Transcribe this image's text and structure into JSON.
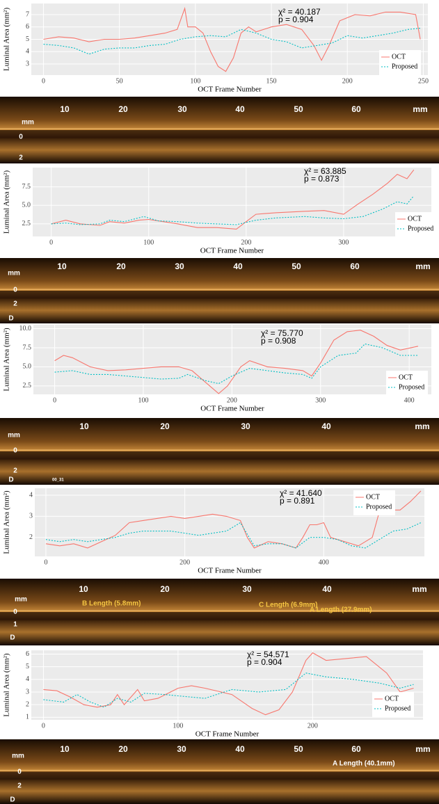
{
  "chart_data": [
    {
      "type": "line",
      "xlabel": "OCT Frame Number",
      "ylabel": "Luminal Area (mm²)",
      "annotations": [
        "χ² = 40.187",
        "p = 0.904"
      ],
      "xlim": [
        -8,
        253
      ],
      "xticks": [
        0,
        50,
        100,
        150,
        200,
        250
      ],
      "ylim": [
        2.1,
        7.9
      ],
      "yticks": [
        3,
        4,
        5,
        6,
        7
      ],
      "grid": true,
      "legend": "bottom-right",
      "series": [
        {
          "name": "OCT",
          "color": "#f8766d",
          "x": [
            0,
            10,
            20,
            30,
            40,
            50,
            60,
            70,
            80,
            88,
            93,
            95,
            100,
            105,
            110,
            115,
            120,
            125,
            130,
            135,
            140,
            150,
            160,
            170,
            178,
            183,
            188,
            195,
            205,
            215,
            225,
            235,
            245,
            248
          ],
          "values": [
            5.0,
            5.2,
            5.1,
            4.8,
            5.0,
            5.0,
            5.1,
            5.3,
            5.5,
            5.8,
            7.5,
            6.0,
            6.0,
            5.5,
            4.0,
            2.8,
            2.4,
            3.5,
            5.5,
            6.0,
            5.6,
            6.0,
            6.2,
            5.8,
            4.5,
            3.3,
            4.5,
            6.5,
            7.0,
            6.9,
            7.2,
            7.2,
            7.0,
            5.0
          ]
        },
        {
          "name": "Proposed",
          "color": "#00bfc4",
          "x": [
            0,
            10,
            20,
            30,
            40,
            50,
            60,
            70,
            80,
            90,
            100,
            110,
            120,
            130,
            140,
            150,
            160,
            170,
            180,
            190,
            200,
            210,
            220,
            230,
            240,
            248
          ],
          "values": [
            4.6,
            4.5,
            4.3,
            3.8,
            4.2,
            4.3,
            4.3,
            4.5,
            4.6,
            5.0,
            5.2,
            5.3,
            5.2,
            5.8,
            5.5,
            5.0,
            4.8,
            4.3,
            4.5,
            4.7,
            5.3,
            5.1,
            5.3,
            5.5,
            5.8,
            5.9
          ]
        }
      ]
    },
    {
      "type": "line",
      "xlabel": "OCT Frame Number",
      "ylabel": "Luminal Area (mm²)",
      "annotations": [
        "χ² = 63.885",
        "p = 0.873"
      ],
      "xlim": [
        -19,
        390
      ],
      "xticks": [
        0,
        100,
        200,
        300
      ],
      "ylim": [
        0.8,
        10.1
      ],
      "yticks": [
        2.5,
        {
          "value": 5,
          "label": "5.0"
        },
        7.5
      ],
      "grid": true,
      "legend": "bottom-right",
      "series": [
        {
          "name": "OCT",
          "color": "#f8766d",
          "x": [
            0,
            15,
            30,
            50,
            60,
            75,
            90,
            100,
            115,
            130,
            150,
            170,
            190,
            200,
            210,
            230,
            260,
            280,
            300,
            315,
            330,
            345,
            355,
            365,
            372
          ],
          "values": [
            2.5,
            3.0,
            2.5,
            2.3,
            2.8,
            2.6,
            3.0,
            3.1,
            2.8,
            2.5,
            2.0,
            2.0,
            1.8,
            2.8,
            3.8,
            4.0,
            4.2,
            4.3,
            3.8,
            5.2,
            6.5,
            8.0,
            9.2,
            8.6,
            9.8
          ]
        },
        {
          "name": "Proposed",
          "color": "#00bfc4",
          "x": [
            0,
            15,
            30,
            50,
            60,
            75,
            95,
            110,
            130,
            150,
            170,
            190,
            210,
            230,
            260,
            280,
            300,
            320,
            340,
            355,
            365,
            372
          ],
          "values": [
            2.5,
            2.6,
            2.4,
            2.5,
            3.0,
            2.8,
            3.5,
            2.9,
            2.8,
            2.6,
            2.5,
            2.4,
            3.0,
            3.3,
            3.5,
            3.3,
            3.2,
            3.5,
            4.5,
            5.5,
            5.2,
            6.3
          ]
        }
      ]
    },
    {
      "type": "line",
      "xlabel": "OCT Frame Number",
      "ylabel": "Luminal Area (mm²)",
      "annotations": [
        "χ² = 75.770",
        "p = 0.908"
      ],
      "xlim": [
        -24,
        425
      ],
      "xticks": [
        0,
        100,
        200,
        300,
        400
      ],
      "ylim": [
        1.4,
        10.5
      ],
      "yticks": [
        2.5,
        {
          "value": 5,
          "label": "5.0"
        },
        7.5,
        {
          "value": 10,
          "label": "10.0"
        }
      ],
      "grid": true,
      "legend": "bottom-right",
      "series": [
        {
          "name": "OCT",
          "color": "#f8766d",
          "x": [
            0,
            10,
            20,
            40,
            60,
            80,
            100,
            120,
            140,
            155,
            170,
            185,
            195,
            210,
            220,
            240,
            260,
            280,
            290,
            300,
            315,
            330,
            345,
            360,
            375,
            390,
            410
          ],
          "values": [
            5.8,
            6.5,
            6.2,
            5.0,
            4.5,
            4.6,
            4.8,
            5.0,
            5.0,
            4.5,
            3.0,
            1.5,
            2.5,
            5.0,
            5.8,
            5.0,
            4.8,
            4.5,
            3.8,
            5.5,
            8.5,
            9.6,
            9.8,
            9.0,
            7.8,
            7.2,
            7.7
          ]
        },
        {
          "name": "Proposed",
          "color": "#00bfc4",
          "x": [
            0,
            20,
            40,
            60,
            80,
            100,
            120,
            140,
            150,
            170,
            185,
            200,
            220,
            240,
            260,
            280,
            290,
            300,
            320,
            340,
            350,
            370,
            390,
            410
          ],
          "values": [
            4.3,
            4.5,
            4.0,
            4.0,
            3.8,
            3.6,
            3.4,
            3.5,
            4.0,
            3.2,
            2.8,
            3.8,
            4.8,
            4.5,
            4.2,
            4.0,
            3.5,
            5.0,
            6.5,
            6.8,
            8.0,
            7.5,
            6.5,
            6.5
          ]
        }
      ]
    },
    {
      "type": "line",
      "xlabel": "OCT Frame Number",
      "ylabel": "Luminal Area (mm²)",
      "annotations": [
        "χ² = 41.640",
        "p = 0.891"
      ],
      "xlim": [
        -16,
        545
      ],
      "xticks": [
        0,
        200,
        400
      ],
      "ylim": [
        1.1,
        4.33
      ],
      "yticks": [
        2,
        3,
        4
      ],
      "grid": true,
      "legend": "top-right",
      "series": [
        {
          "name": "OCT",
          "color": "#f8766d",
          "x": [
            0,
            20,
            40,
            60,
            80,
            100,
            120,
            140,
            160,
            180,
            200,
            220,
            240,
            260,
            280,
            290,
            300,
            320,
            340,
            360,
            370,
            380,
            390,
            400,
            410,
            430,
            450,
            470,
            480,
            490,
            510,
            525,
            540
          ],
          "values": [
            1.7,
            1.6,
            1.7,
            1.5,
            1.8,
            2.1,
            2.7,
            2.8,
            2.9,
            3.0,
            2.9,
            3.0,
            3.1,
            3.0,
            2.8,
            2.0,
            1.5,
            1.8,
            1.7,
            1.5,
            2.0,
            2.6,
            2.6,
            2.7,
            2.0,
            1.8,
            1.6,
            2.0,
            3.2,
            3.3,
            3.3,
            3.7,
            4.2
          ]
        },
        {
          "name": "Proposed",
          "color": "#00bfc4",
          "x": [
            0,
            20,
            40,
            60,
            80,
            100,
            120,
            140,
            160,
            180,
            200,
            220,
            240,
            260,
            280,
            300,
            320,
            340,
            360,
            380,
            400,
            420,
            440,
            460,
            480,
            500,
            520,
            540
          ],
          "values": [
            1.9,
            1.8,
            1.9,
            1.8,
            1.9,
            2.0,
            2.2,
            2.3,
            2.3,
            2.3,
            2.2,
            2.1,
            2.2,
            2.3,
            2.7,
            1.6,
            1.7,
            1.7,
            1.5,
            2.0,
            2.0,
            1.9,
            1.6,
            1.5,
            1.9,
            2.3,
            2.4,
            2.7
          ]
        }
      ]
    },
    {
      "type": "line",
      "xlabel": "OCT Frame Number",
      "ylabel": "Luminal Area (mm²)",
      "annotations": [
        "χ² = 54.571",
        "p = 0.904"
      ],
      "xlim": [
        -9,
        282
      ],
      "xticks": [
        0,
        100,
        200
      ],
      "ylim": [
        0.8,
        6.3
      ],
      "yticks": [
        1,
        2,
        3,
        4,
        5,
        6
      ],
      "grid": true,
      "legend": "bottom-right",
      "series": [
        {
          "name": "OCT",
          "color": "#f8766d",
          "x": [
            0,
            10,
            20,
            30,
            40,
            50,
            55,
            60,
            70,
            75,
            85,
            100,
            110,
            120,
            140,
            155,
            165,
            175,
            185,
            195,
            200,
            210,
            230,
            240,
            255,
            265,
            275
          ],
          "values": [
            3.2,
            3.1,
            2.6,
            2.0,
            1.8,
            2.0,
            2.8,
            2.0,
            3.2,
            2.3,
            2.5,
            3.3,
            3.5,
            3.3,
            2.8,
            1.7,
            1.2,
            1.6,
            3.0,
            5.5,
            6.1,
            5.5,
            5.7,
            5.8,
            4.5,
            3.0,
            3.3
          ]
        },
        {
          "name": "Proposed",
          "color": "#00bfc4",
          "x": [
            0,
            15,
            25,
            35,
            45,
            55,
            65,
            75,
            90,
            100,
            120,
            140,
            160,
            180,
            195,
            210,
            230,
            250,
            265,
            275
          ],
          "values": [
            2.4,
            2.2,
            2.8,
            2.2,
            1.8,
            2.5,
            2.2,
            2.9,
            2.8,
            2.7,
            2.5,
            3.2,
            3.0,
            3.2,
            4.5,
            4.2,
            4.0,
            3.7,
            3.3,
            3.6
          ]
        }
      ]
    }
  ],
  "images": [
    {
      "scale": [
        "10",
        "20",
        "30",
        "40",
        "50",
        "60",
        "mm"
      ],
      "side": [
        "mm",
        "0",
        "2"
      ],
      "notes": []
    },
    {
      "scale": [
        "10",
        "20",
        "30",
        "40",
        "50",
        "60",
        "mm"
      ],
      "side": [
        "mm",
        "0",
        "2",
        "D"
      ],
      "notes": []
    },
    {
      "scale": [
        "10",
        "20",
        "30",
        "40",
        "mm"
      ],
      "side": [
        "mm",
        "0",
        "2",
        "D"
      ],
      "notes": [
        "00_31"
      ]
    },
    {
      "scale": [
        "10",
        "20",
        "30",
        "40",
        "mm"
      ],
      "side": [
        "mm",
        "0",
        "1",
        "D"
      ],
      "notes": [
        "B Length (5.8mm)",
        "C Length (6.9mm)",
        "A Length (27.9mm)"
      ]
    },
    {
      "scale": [
        "10",
        "20",
        "30",
        "40",
        "50",
        "60",
        "mm"
      ],
      "side": [
        "mm",
        "0",
        "2",
        "D"
      ],
      "notes": [
        "A Length (40.1mm)"
      ]
    }
  ]
}
